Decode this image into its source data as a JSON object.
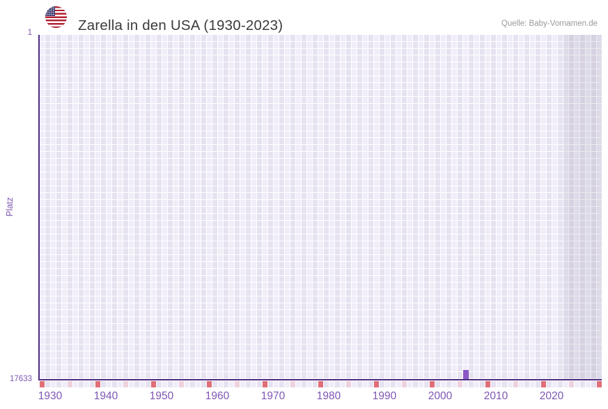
{
  "header": {
    "title": "Zarella in den USA (1930-2023)",
    "source": "Quelle: Baby-Vornamen.de",
    "flag_icon": "us-flag-circle-icon"
  },
  "chart_data": {
    "type": "bar",
    "title": "Zarella in den USA (1930-2023)",
    "xlabel": "",
    "ylabel": "Platz",
    "y_axis": {
      "labels": [
        "1",
        "17633"
      ],
      "min": 1,
      "max": 17633,
      "inverted": true
    },
    "x_axis": {
      "first_year": 1930,
      "last_data_year": 2023,
      "grid_last_year": 2030,
      "ticks": [
        1930,
        1940,
        1950,
        1960,
        1970,
        1980,
        1990,
        2000,
        2010,
        2020
      ]
    },
    "series": [
      {
        "name": "Zarella Platz (Rang)",
        "points": [
          {
            "year": 2006,
            "platz": 17170
          }
        ]
      }
    ],
    "decade_marker_years": [
      1930,
      1940,
      1950,
      1960,
      1970,
      1980,
      1990,
      2000,
      2010,
      2020,
      2030
    ],
    "half_decade_marker_years": [
      1935,
      1945,
      1955,
      1965,
      1975,
      1985,
      1995,
      2005,
      2015,
      2025
    ],
    "no_data_region": {
      "from_year": 2024,
      "to_year": 2030
    },
    "grid": {
      "on": true
    },
    "legend": {
      "shown": false
    },
    "colors": {
      "bar": "#8b58c6",
      "axis": "#4e2c82",
      "decade_marker": "#e06e78",
      "half_decade_marker": "#eed2de",
      "grid_cell_light": "#f0edf9",
      "grid_cell_dark": "#e6e2f0",
      "no_data_overlay": "rgba(96,92,120,0.12)",
      "label_purple": "#7d56b2",
      "title_text": "#3b3b3b",
      "source_text": "#999999",
      "flag_red": "#b22234",
      "flag_blue": "#3c3b6e"
    }
  }
}
